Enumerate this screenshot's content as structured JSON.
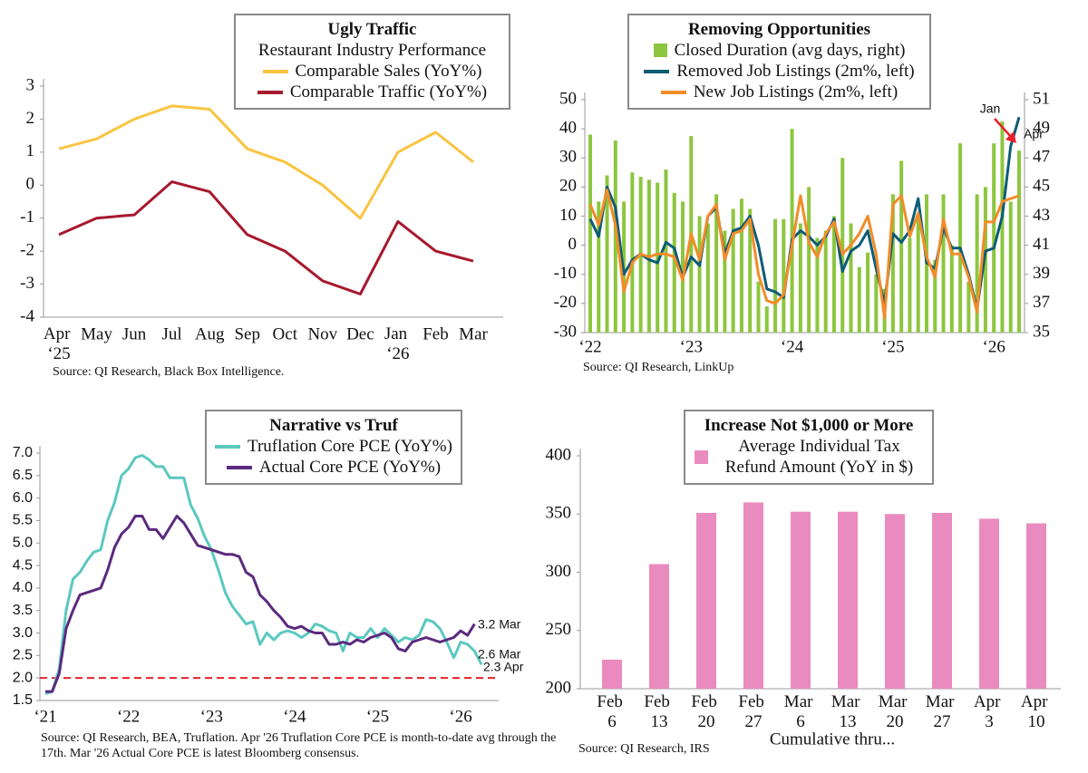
{
  "chart_data": [
    {
      "type": "line",
      "title": "Ugly Traffic",
      "subtitle": "Restaurant Industry Performance",
      "categories": [
        "Apr ‘25",
        "May",
        "Jun",
        "Jul",
        "Aug",
        "Sep",
        "Oct",
        "Nov",
        "Dec",
        "Jan ‘26",
        "Feb",
        "Mar"
      ],
      "series": [
        {
          "name": "Comparable Sales (YoY%)",
          "color": "#f9c440",
          "values": [
            1.1,
            1.4,
            2.0,
            2.4,
            2.3,
            1.1,
            0.7,
            0.0,
            -1.0,
            1.0,
            1.6,
            0.7
          ]
        },
        {
          "name": "Comparable Traffic (YoY%)",
          "color": "#a6192e",
          "values": [
            -1.5,
            -1.0,
            -0.9,
            0.1,
            -0.2,
            -1.5,
            -2.0,
            -2.9,
            -3.3,
            -1.1,
            -2.0,
            -2.3
          ]
        }
      ],
      "ylim": [
        -4,
        3
      ],
      "yticks": [
        -4,
        -3,
        -2,
        -1,
        0,
        1,
        2,
        3
      ],
      "source": "Source: QI Research, Black Box Intelligence."
    },
    {
      "type": "combo",
      "title": "Removing Opportunities",
      "categories": [
        "‘22",
        null,
        null,
        null,
        null,
        null,
        null,
        null,
        null,
        null,
        null,
        null,
        "‘23",
        null,
        null,
        null,
        null,
        null,
        null,
        null,
        null,
        null,
        null,
        null,
        "‘24",
        null,
        null,
        null,
        null,
        null,
        null,
        null,
        null,
        null,
        null,
        null,
        "‘25",
        null,
        null,
        null,
        null,
        null,
        null,
        null,
        null,
        null,
        null,
        null,
        "‘26",
        null,
        null,
        null
      ],
      "series": [
        {
          "name": "Closed Duration (avg days, right)",
          "kind": "bar",
          "axis": "y2",
          "color": "#8dc63f",
          "values": [
            48.6,
            44.0,
            45.8,
            48.2,
            44.0,
            46.0,
            45.7,
            45.5,
            45.3,
            46.2,
            44.6,
            44.0,
            48.5,
            43.0,
            42.5,
            44.5,
            42.0,
            43.5,
            44.2,
            43.5,
            38.5,
            36.8,
            42.8,
            42.8,
            49.0,
            42.5,
            45.0,
            41.5,
            42.0,
            43.0,
            47.0,
            42.5,
            39.5,
            40.5,
            39.0,
            38.0,
            44.5,
            46.8,
            41.5,
            43.0,
            44.5,
            40.0,
            44.5,
            41.0,
            48.0,
            38.5,
            44.5,
            45.0,
            48.0,
            49.5,
            44.0,
            47.5
          ]
        },
        {
          "name": "Removed Job Listings (2m%, left)",
          "kind": "line",
          "color": "#0d5c75",
          "values": [
            9,
            3,
            20,
            13,
            -10,
            -5,
            -3,
            -5,
            -6,
            1,
            -1,
            -11,
            -4,
            -7,
            10,
            13,
            -3,
            5,
            6,
            10,
            0,
            -15,
            -16,
            -18,
            2,
            5,
            3,
            0,
            3,
            9,
            -9,
            -2,
            0,
            5,
            -8,
            -20,
            4,
            1,
            5,
            16,
            -6,
            -8,
            6,
            -1,
            -1,
            -10,
            -22,
            -2,
            -1,
            10,
            34,
            44
          ]
        },
        {
          "name": "New Job Listings (2m%, left)",
          "kind": "line",
          "color": "#f28c28",
          "values": [
            14,
            7,
            19,
            7,
            -16,
            -6,
            -3,
            -4,
            -3,
            -3,
            -4,
            -12,
            4,
            -5,
            10,
            14,
            -5,
            4,
            5,
            9,
            -10,
            -19,
            -20,
            -17,
            0,
            17,
            1,
            -4,
            4,
            8,
            -3,
            0,
            4,
            10,
            -3,
            -25,
            14,
            17,
            3,
            11,
            -4,
            -11,
            9,
            -3,
            -3,
            -11,
            -23,
            8,
            8,
            15,
            16,
            17
          ]
        }
      ],
      "ylim": [
        -30,
        50
      ],
      "yticks": [
        -30,
        -20,
        -10,
        0,
        10,
        20,
        30,
        40,
        50
      ],
      "y2lim": [
        35,
        51
      ],
      "y2ticks": [
        35,
        37,
        39,
        41,
        43,
        45,
        47,
        49,
        51
      ],
      "annotations": [
        "Jan",
        "Apr"
      ],
      "annotation_color": "#e8202a",
      "source": "Source: QI Research, LinkUp"
    },
    {
      "type": "line",
      "title": "Narrative vs Truf",
      "categories": [
        "‘21",
        null,
        null,
        null,
        null,
        null,
        null,
        null,
        null,
        null,
        null,
        null,
        "‘22",
        null,
        null,
        null,
        null,
        null,
        null,
        null,
        null,
        null,
        null,
        null,
        "‘23",
        null,
        null,
        null,
        null,
        null,
        null,
        null,
        null,
        null,
        null,
        null,
        "‘24",
        null,
        null,
        null,
        null,
        null,
        null,
        null,
        null,
        null,
        null,
        null,
        "‘25",
        null,
        null,
        null,
        null,
        null,
        null,
        null,
        null,
        null,
        null,
        null,
        "‘26",
        null,
        null,
        null
      ],
      "series": [
        {
          "name": "Truflation Core PCE (YoY%)",
          "color": "#5bc8c0",
          "values": [
            1.65,
            1.7,
            2.2,
            3.5,
            4.2,
            4.35,
            4.6,
            4.8,
            4.85,
            5.5,
            5.9,
            6.5,
            6.65,
            6.9,
            6.95,
            6.85,
            6.7,
            6.7,
            6.45,
            6.45,
            6.45,
            5.85,
            5.55,
            5.15,
            4.85,
            4.4,
            3.9,
            3.6,
            3.4,
            3.2,
            3.25,
            2.75,
            3.0,
            2.85,
            3.0,
            3.05,
            3.0,
            2.9,
            3.0,
            3.2,
            3.15,
            3.05,
            3.0,
            2.6,
            3.0,
            2.9,
            2.9,
            3.1,
            2.9,
            3.1,
            2.95,
            2.8,
            2.9,
            2.85,
            2.95,
            3.3,
            3.25,
            3.1,
            2.8,
            2.45,
            2.8,
            2.75,
            2.6,
            2.3
          ]
        },
        {
          "name": "Actual Core PCE (YoY%)",
          "color": "#5b2a7e",
          "values": [
            1.7,
            1.7,
            2.1,
            3.1,
            3.5,
            3.85,
            3.9,
            3.95,
            4.0,
            4.4,
            4.9,
            5.2,
            5.35,
            5.6,
            5.6,
            5.3,
            5.3,
            5.1,
            5.35,
            5.6,
            5.45,
            5.2,
            4.95,
            4.9,
            4.85,
            4.8,
            4.75,
            4.75,
            4.7,
            4.35,
            4.25,
            3.85,
            3.7,
            3.5,
            3.35,
            3.15,
            3.1,
            3.15,
            3.05,
            3.0,
            3.0,
            2.75,
            2.75,
            2.8,
            2.75,
            2.85,
            2.8,
            2.9,
            2.95,
            3.0,
            2.9,
            2.65,
            2.6,
            2.8,
            2.85,
            2.9,
            2.85,
            2.8,
            2.85,
            2.9,
            3.05,
            2.95,
            3.2,
            null
          ]
        }
      ],
      "ylim": [
        1.5,
        7.0
      ],
      "yticks": [
        1.5,
        {
          "value": 2,
          "label": "2.0"
        },
        2.5,
        {
          "value": 3,
          "label": "3.0"
        },
        3.5,
        {
          "value": 4,
          "label": "4.0"
        },
        4.5,
        {
          "value": 5,
          "label": "5.0"
        },
        5.5,
        {
          "value": 6,
          "label": "6.0"
        },
        6.5,
        {
          "value": 7,
          "label": "7.0"
        }
      ],
      "reference_line": 2,
      "reference_color": "#e8202a",
      "annotations": [
        "3.2 Mar",
        "2.6 Mar",
        "2.3 Apr"
      ],
      "source": "Source: QI Research, BEA, Truflation. Apr '26 Truflation Core PCE is month-to-date avg through the 17th. Mar '26 Actual Core PCE is latest Bloomberg consensus."
    },
    {
      "type": "bar",
      "title": "Increase Not $1,000 or More",
      "categories": [
        "Feb 6",
        "Feb 13",
        "Feb 20",
        "Feb 27",
        "Mar 6",
        "Mar 13",
        "Mar 20",
        "Mar 27",
        "Apr 3",
        "Apr 10"
      ],
      "series": [
        {
          "name": "Average Individual Tax Refund Amount (YoY in $)",
          "color": "#e98bbf",
          "values": [
            225,
            307,
            351,
            360,
            352,
            352,
            350,
            351,
            346,
            342
          ]
        }
      ],
      "ylim": [
        200,
        400
      ],
      "yticks": [
        200,
        250,
        300,
        350,
        400
      ],
      "x_label": "Cumulative thru...",
      "source": "Source: QI Research, IRS"
    }
  ]
}
